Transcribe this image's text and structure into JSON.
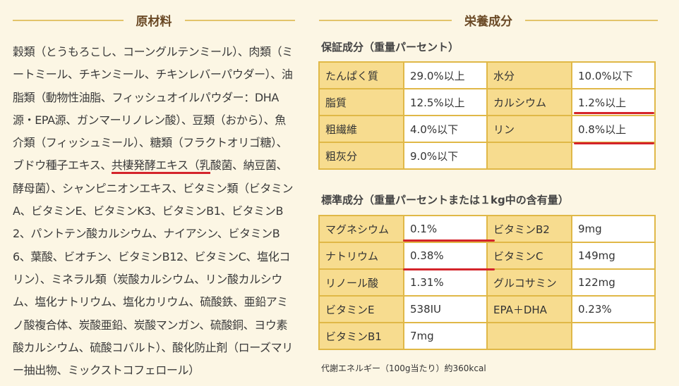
{
  "left": {
    "heading": "原材料",
    "ingredients_before": "穀類（とうもろこし、コーングルテンミール）、肉類（ミートミール、チキンミール、チキンレバーパウダー）、油脂類（動物性油脂、フィッシュオイルパウダー：DHA源・EPA源、ガンマーリノレン酸）、豆類（おから）、魚介類（フィッシュミール）、糖類（フラクトオリゴ糖）、ブドウ種子エキス、",
    "ingredients_underlined": "共棲発酵エキス（乳",
    "ingredients_after": "酸菌、納豆菌、酵母菌）、シャンピニオンエキス、ビタミン類（ビタミンA、ビタミンE、ビタミンK3、ビタミンB1、ビタミンB2、パントテン酸カルシウム、ナイアシン、ビタミンB6、葉酸、ビオチン、ビタミンB12、ビタミンC、塩化コリン）、ミネラル類（炭酸カルシウム、リン酸カルシウム、塩化ナトリウム、塩化カリウム、硫酸鉄、亜鉛アミノ酸複合体、炭酸亜鉛、炭酸マンガン、硫酸銅、ヨウ素酸カルシウム、硫酸コバルト）、酸化防止剤（ローズマリー抽出物、ミックストコフェロール）"
  },
  "right": {
    "heading": "栄養成分",
    "guaranteed": {
      "title": "保証成分（重量パーセント）",
      "rows": [
        [
          "たんぱく質",
          "29.0%以上",
          "水分",
          "10.0%以下"
        ],
        [
          "脂質",
          "12.5%以上",
          "カルシウム",
          "1.2%以上"
        ],
        [
          "粗繊維",
          "4.0%以下",
          "リン",
          "0.8%以上"
        ],
        [
          "粗灰分",
          "9.0%以下",
          "",
          ""
        ]
      ]
    },
    "standard": {
      "title": "標準成分（重量パーセントまたは１kg中の含有量）",
      "rows": [
        [
          "マグネシウム",
          "0.1%",
          "ビタミンB2",
          "9mg"
        ],
        [
          "ナトリウム",
          "0.38%",
          "ビタミンC",
          "149mg"
        ],
        [
          "リノール酸",
          "1.31%",
          "グルコサミン",
          "122mg"
        ],
        [
          "ビタミンE",
          "538IU",
          "EPA＋DHA",
          "0.23%"
        ],
        [
          "ビタミンB1",
          "7mg",
          "",
          ""
        ]
      ]
    },
    "energy_note": "代謝エネルギー（100g当たり）約360kcal"
  }
}
